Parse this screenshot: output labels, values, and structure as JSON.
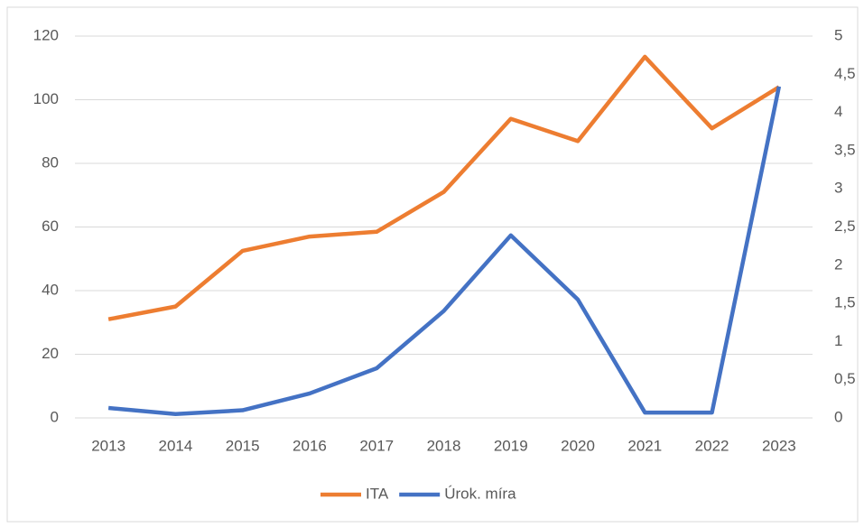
{
  "chart_data": {
    "type": "line",
    "categories": [
      "2013",
      "2014",
      "2015",
      "2016",
      "2017",
      "2018",
      "2019",
      "2020",
      "2021",
      "2022",
      "2023"
    ],
    "series": [
      {
        "name": "ITA",
        "color": "#ed7d31",
        "values": [
          31,
          35,
          52.5,
          57,
          58.5,
          71,
          94,
          87,
          113.5,
          91,
          104
        ]
      },
      {
        "name": "Úrok. míra",
        "color": "#4472c4",
        "axis": "y2",
        "values": [
          0.13,
          0.05,
          0.1,
          0.32,
          0.65,
          1.4,
          2.39,
          1.55,
          0.07,
          0.07,
          4.34
        ]
      }
    ],
    "ylim": [
      0,
      120
    ],
    "yticks": [
      0,
      20,
      40,
      60,
      80,
      100,
      120
    ],
    "y2lim": [
      0,
      5
    ],
    "y2ticks": [
      0,
      {
        "value": 0.5,
        "label": "0,5"
      },
      1,
      {
        "value": 1.5,
        "label": "1,5"
      },
      2,
      {
        "value": 2.5,
        "label": "2,5"
      },
      3,
      {
        "value": 3.5,
        "label": "3,5"
      },
      4,
      {
        "value": 4.5,
        "label": "4,5"
      },
      5
    ],
    "grid": true,
    "legend": "bottom"
  }
}
